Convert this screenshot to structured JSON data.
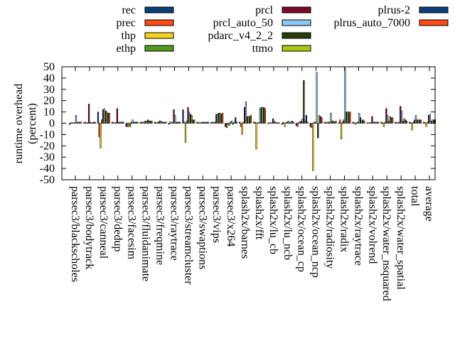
{
  "chart_data": {
    "type": "bar",
    "title": "",
    "xlabel": "",
    "ylabel": "runtime overhead\n(percent)",
    "ylabel_lines": [
      "runtime overhead",
      "(percent)"
    ],
    "ylim": [
      -50,
      50
    ],
    "yticks": [
      -50,
      -40,
      -30,
      -20,
      -10,
      0,
      10,
      20,
      30,
      40,
      50
    ],
    "grid": false,
    "legend_position": "top",
    "categories": [
      "parsec3/blackscholes",
      "parsec3/bodytrack",
      "parsec3/canneal",
      "parsec3/dedup",
      "parsec3/facesim",
      "parsec3/fluidanimate",
      "parsec3/freqmine",
      "parsec3/raytrace",
      "parsec3/streamcluster",
      "parsec3/swaptions",
      "parsec3/vips",
      "parsec3/x264",
      "splash2x/barnes",
      "splash2x/fft",
      "splash2x/lu_cb",
      "splash2x/lu_ncb",
      "splash2x/ocean_cp",
      "splash2x/ocean_ncp",
      "splash2x/radiosity",
      "splash2x/radix",
      "splash2x/raytrace",
      "splash2x/volrend",
      "splash2x/water_nsquared",
      "splash2x/water_spatial",
      "total",
      "average"
    ],
    "series": [
      {
        "name": "rec",
        "color": "#0b3f78",
        "values": [
          -1,
          0.5,
          10,
          1,
          -3,
          1,
          1,
          -1,
          12,
          1,
          1,
          -3,
          1,
          1,
          0,
          -1,
          -2,
          -3,
          1,
          0.5,
          1,
          0.5,
          1,
          1,
          1,
          1
        ]
      },
      {
        "name": "prec",
        "color": "#ff4a12",
        "values": [
          0.5,
          1,
          -12,
          0.5,
          -3,
          1,
          0.5,
          1,
          1,
          0.5,
          0.5,
          -4,
          -3,
          1,
          0.5,
          1,
          -3,
          -4,
          0.5,
          3,
          0.5,
          0.5,
          0.5,
          0.5,
          0.5,
          0.5
        ]
      },
      {
        "name": "thp",
        "color": "#f5d21e",
        "values": [
          0.5,
          0.5,
          -22,
          0.5,
          -3,
          1,
          0.5,
          1,
          -17,
          0.5,
          1,
          -1,
          -10,
          -23,
          0.5,
          -3,
          1,
          -42,
          1,
          -14,
          -1,
          0.5,
          -3,
          0.5,
          -6,
          -3
        ]
      },
      {
        "name": "ethp",
        "color": "#529a1e",
        "values": [
          0.5,
          0.5,
          3,
          0.5,
          -3,
          1,
          1,
          0.5,
          2,
          0.5,
          1,
          -2,
          1,
          0.5,
          0.5,
          0.5,
          1,
          1,
          1,
          1,
          0.5,
          0.5,
          1,
          1,
          1,
          1
        ]
      },
      {
        "name": "prcl",
        "color": "#7a0a28",
        "values": [
          0.5,
          17,
          12,
          13,
          1,
          2,
          2,
          12,
          14,
          1,
          8,
          1,
          14,
          0.5,
          4,
          1,
          2,
          1,
          1,
          3,
          1,
          6,
          13,
          15,
          3,
          7
        ]
      },
      {
        "name": "prcl_auto_50",
        "color": "#8ec8f0",
        "values": [
          7,
          1,
          13,
          1,
          3,
          2,
          2,
          7,
          10,
          1,
          8,
          2,
          19,
          13,
          2,
          2,
          4,
          45,
          9,
          49,
          9,
          1,
          7,
          11,
          7,
          8
        ]
      },
      {
        "name": "pdarc_v4_2_2",
        "color": "#283c0a",
        "values": [
          1,
          0.5,
          11,
          1,
          1,
          3,
          1,
          1,
          8,
          1,
          9,
          -1,
          6,
          14,
          1,
          1,
          38,
          -13,
          2,
          10,
          5,
          1,
          2,
          2,
          3,
          2
        ]
      },
      {
        "name": "ttmo",
        "color": "#a8c814",
        "values": [
          1,
          0.5,
          10,
          1,
          1,
          2,
          1,
          1,
          7,
          0.5,
          9,
          1,
          6,
          14,
          0.5,
          0.5,
          2,
          7,
          2,
          10,
          2,
          1,
          6,
          4,
          3,
          3
        ]
      },
      {
        "name": "plrus-2",
        "color": "#0b3f78",
        "values": [
          1,
          1,
          9,
          1,
          1,
          2,
          1,
          1,
          3,
          1,
          8,
          5,
          6,
          14,
          0.5,
          2,
          7,
          6,
          1,
          10,
          3,
          1,
          5,
          3,
          3,
          3
        ]
      },
      {
        "name": "plrus_auto_7000",
        "color": "#ff4a12",
        "values": [
          1,
          1,
          9,
          1,
          1,
          2,
          1,
          1,
          3,
          1,
          9,
          1,
          7,
          13,
          0.5,
          1,
          1,
          5,
          2,
          10,
          2,
          1,
          5,
          2,
          3,
          3
        ]
      }
    ]
  }
}
